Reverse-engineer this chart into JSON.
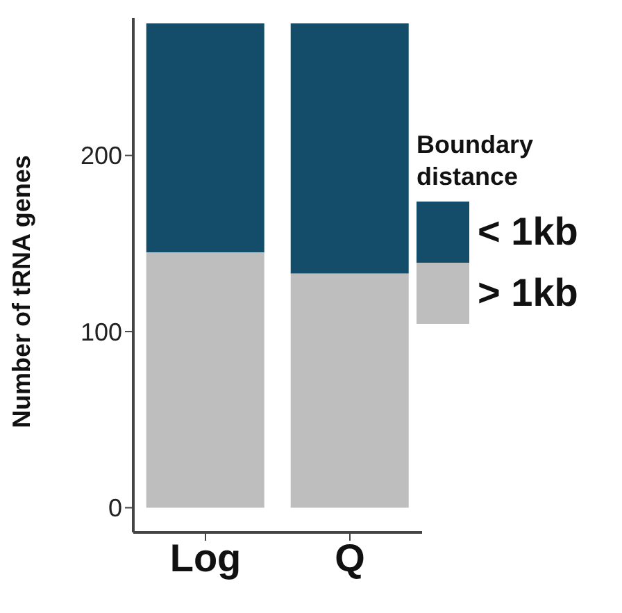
{
  "chart_data": {
    "type": "bar",
    "stacked": true,
    "ylabel": "Number of tRNA genes",
    "legend_title": "Boundary distance",
    "categories": [
      "Log",
      "Q"
    ],
    "series": [
      {
        "name": "> 1kb",
        "color": "#bebebe",
        "values": [
          145,
          133
        ]
      },
      {
        "name": "< 1kb",
        "color": "#134d69",
        "values": [
          130,
          142
        ]
      }
    ],
    "ylim": [
      -14,
      278
    ],
    "yticks": [
      0,
      100,
      200
    ],
    "grid": false,
    "legend": "right"
  }
}
